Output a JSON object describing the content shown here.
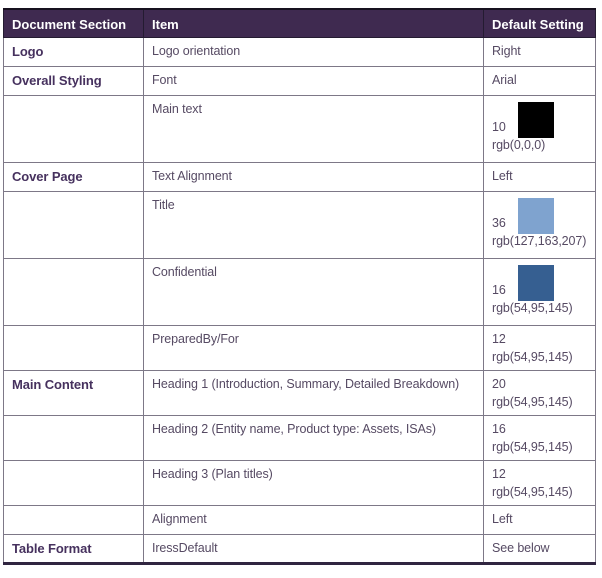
{
  "table": {
    "columns": [
      "Document Section",
      "Item",
      "Default Setting"
    ],
    "rows": [
      {
        "section": "Logo",
        "item": "Logo orientation",
        "setting": {
          "text": "Right"
        }
      },
      {
        "section": "Overall Styling",
        "item": "Font",
        "setting": {
          "text": "Arial"
        }
      },
      {
        "section": "",
        "item": "Main text",
        "setting": {
          "size": "10",
          "rgb": "rgb(0,0,0)",
          "swatch": "#000000"
        }
      },
      {
        "section": "Cover Page",
        "item": "Text Alignment",
        "setting": {
          "text": "Left"
        }
      },
      {
        "section": "",
        "item": "Title",
        "setting": {
          "size": "36",
          "rgb": "rgb(127,163,207)",
          "swatch": "#7FA3CF"
        }
      },
      {
        "section": "",
        "item": "Confidential",
        "setting": {
          "size": "16",
          "rgb": "rgb(54,95,145)",
          "swatch": "#365F91"
        }
      },
      {
        "section": "",
        "item": "PreparedBy/For",
        "setting": {
          "size": "12",
          "rgb": "rgb(54,95,145)"
        }
      },
      {
        "section": "Main Content",
        "item": "Heading 1 (Introduction, Summary, Detailed Breakdown)",
        "setting": {
          "size": "20",
          "rgb": "rgb(54,95,145)"
        }
      },
      {
        "section": "",
        "item": "Heading 2 (Entity name, Product type: Assets, ISAs)",
        "setting": {
          "size": "16",
          "rgb": "rgb(54,95,145)"
        }
      },
      {
        "section": "",
        "item": "Heading 3 (Plan titles)",
        "setting": {
          "size": "12",
          "rgb": "rgb(54,95,145)"
        }
      },
      {
        "section": "",
        "item": "Alignment",
        "setting": {
          "text": "Left"
        }
      },
      {
        "section": "Table Format",
        "item": "IressDefault",
        "setting": {
          "text": "See below"
        }
      }
    ]
  },
  "colors": {
    "header_background": "#3f2a50",
    "header_text": "#ffffff",
    "section_text": "#46315e",
    "body_text": "#564a63",
    "border": "#7d7887"
  }
}
